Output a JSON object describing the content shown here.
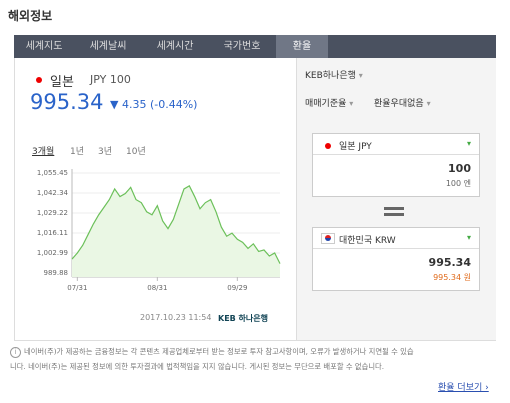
{
  "header": {
    "title": "해외정보"
  },
  "tabs": [
    "세계지도",
    "세계날씨",
    "세계시간",
    "국가번호",
    "환율"
  ],
  "quote": {
    "country": "일본",
    "currency": "JPY 100",
    "price": "995.34",
    "change": "▼ 4.35 (-0.44%)"
  },
  "periods": [
    "3개월",
    "1년",
    "3년",
    "10년"
  ],
  "chart": {
    "type": "line",
    "color": "#6cc05a",
    "categories": [
      null,
      "07/31",
      null,
      null,
      null,
      null,
      null,
      null,
      null,
      null,
      null,
      null,
      null,
      null,
      null,
      null,
      "08/31",
      null,
      null,
      null,
      null,
      null,
      null,
      null,
      null,
      null,
      null,
      null,
      null,
      null,
      null,
      "09/29",
      null,
      null,
      null,
      null,
      null,
      null,
      null,
      null
    ],
    "values": [
      999,
      1003,
      1008,
      1015,
      1022,
      1028,
      1033,
      1038,
      1045,
      1040,
      1042,
      1046,
      1038,
      1036,
      1030,
      1028,
      1034,
      1024,
      1019,
      1025,
      1035,
      1045,
      1047,
      1040,
      1032,
      1036,
      1038,
      1030,
      1020,
      1014,
      1016,
      1012,
      1010,
      1006,
      1009,
      1004,
      1005,
      1001,
      1003,
      996
    ],
    "ylim": [
      989.88,
      1055.45
    ],
    "yticks": [
      {
        "value": 989.88,
        "label": "989.88"
      },
      {
        "value": 1002.99,
        "label": "1,002.99"
      },
      {
        "value": 1016.11,
        "label": "1,016.11"
      },
      {
        "value": 1029.22,
        "label": "1,029.22"
      },
      {
        "value": 1042.34,
        "label": "1,042.34"
      },
      {
        "value": 1055.45,
        "label": "1,055.45"
      }
    ],
    "grid": true
  },
  "timestamp": "2017.10.23 11:54",
  "bank_logo": "KEB 하나은행",
  "converter": {
    "bank": "KEB하나은행",
    "rate_type": "매매기준율",
    "discount": "환율우대없음",
    "from": {
      "currency": "일본 JPY",
      "amount": "100",
      "amount_text": "100 엔"
    },
    "to": {
      "currency": "대한민국 KRW",
      "amount": "995.34",
      "amount_text": "995.34 원"
    }
  },
  "footer": {
    "line1": "네이버(주)가 제공하는 금융정보는 각 콘텐츠 제공업체로부터 받는 정보로 투자 참고사항이며, 오류가 발생하거나 지연될 수 있습",
    "line2": "니다. 네이버(주)는 제공된 정보에 의한 투자결과에 법적책임을 지지 않습니다. 게시된 정보는 무단으로 배포할 수 없습니다.",
    "more": "환율 더보기 ›"
  }
}
